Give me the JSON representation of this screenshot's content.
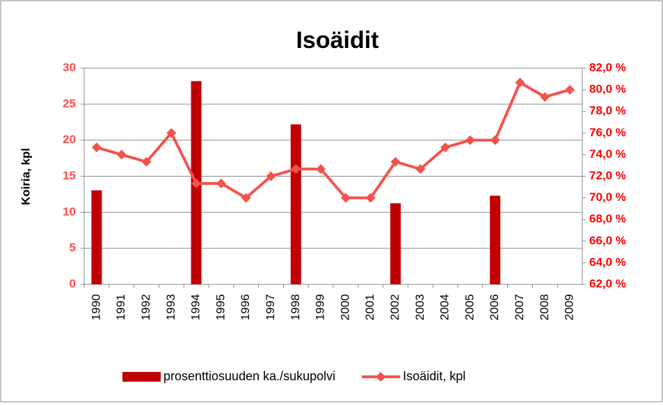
{
  "chart_data": {
    "type": "bar-line",
    "title": "Isoäidit",
    "y_label": "Koiria, kpl",
    "categories": [
      "1990",
      "1991",
      "1992",
      "1993",
      "1994",
      "1995",
      "1996",
      "1997",
      "1998",
      "1999",
      "2000",
      "2001",
      "2002",
      "2003",
      "2004",
      "2005",
      "2006",
      "2007",
      "2008",
      "2009"
    ],
    "series": [
      {
        "name": "prosenttiosuuden ka./sukupolvi",
        "type": "bar",
        "axis": "y2",
        "color": "#c00000",
        "values": [
          70.7,
          null,
          null,
          null,
          80.8,
          null,
          null,
          null,
          76.8,
          null,
          null,
          null,
          69.5,
          null,
          null,
          null,
          70.2,
          null,
          null,
          null
        ]
      },
      {
        "name": "Isoäidit, kpl",
        "type": "line",
        "color": "#f4524d",
        "values": [
          19,
          18,
          17,
          21,
          14,
          14,
          12,
          15,
          16,
          16,
          12,
          12,
          17,
          16,
          19,
          20,
          20,
          28,
          26,
          27
        ]
      }
    ],
    "ylim": [
      0,
      30
    ],
    "yticks": [
      0,
      5,
      10,
      15,
      20,
      25,
      30
    ],
    "y2lim": [
      62,
      82
    ],
    "y2ticks": [
      {
        "value": 62,
        "label": "62,0 %"
      },
      {
        "value": 64,
        "label": "64,0 %"
      },
      {
        "value": 66,
        "label": "66,0 %"
      },
      {
        "value": 68,
        "label": "68,0 %"
      },
      {
        "value": 70,
        "label": "70,0 %"
      },
      {
        "value": 72,
        "label": "72,0 %"
      },
      {
        "value": 74,
        "label": "74,0 %"
      },
      {
        "value": 76,
        "label": "76,0 %"
      },
      {
        "value": 78,
        "label": "78,0 %"
      },
      {
        "value": 80,
        "label": "80,0 %"
      },
      {
        "value": 82,
        "label": "82,0 %"
      }
    ],
    "grid": true
  }
}
